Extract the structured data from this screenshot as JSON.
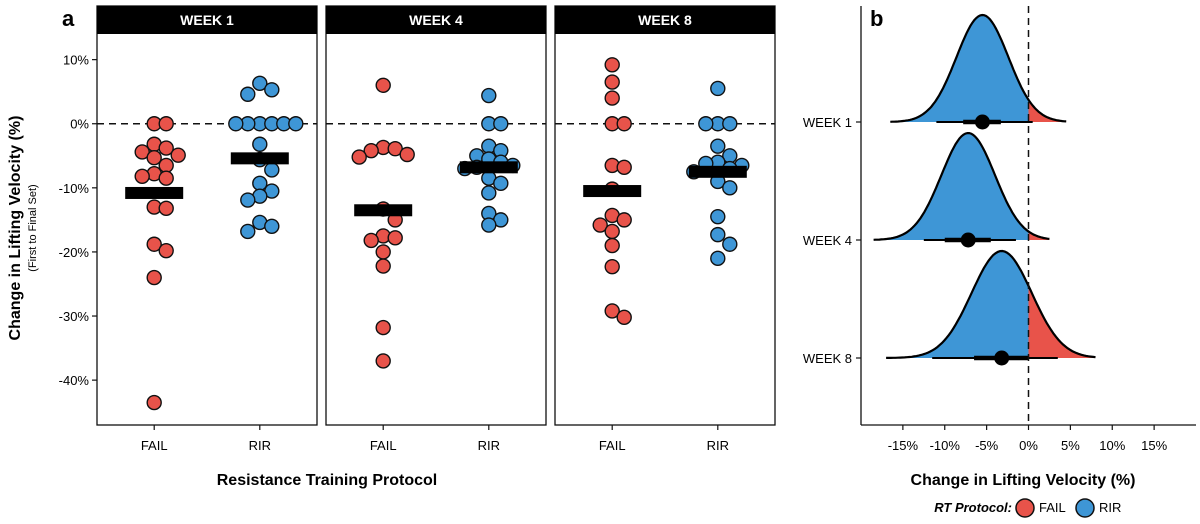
{
  "panel_a": {
    "label": "a",
    "ylabel": "Change in Lifting Velocity (%)",
    "ylabel_sub": "(First to Final Set)",
    "xlabel": "Resistance Training Protocol"
  },
  "panel_b": {
    "label": "b",
    "xlabel": "Change in Lifting Velocity (%)"
  },
  "legend": {
    "title": "RT Protocol:",
    "items": [
      {
        "label": "FAIL",
        "color": "#E8534A"
      },
      {
        "label": "RIR",
        "color": "#3E96D6"
      }
    ]
  },
  "chart_data": [
    {
      "type": "scatter",
      "facets": [
        "WEEK 1",
        "WEEK 4",
        "WEEK 8"
      ],
      "categories": [
        "FAIL",
        "RIR"
      ],
      "ylim": [
        -47,
        14
      ],
      "yticks": [
        10,
        0,
        -10,
        -20,
        -30,
        -40
      ],
      "ytick_labels": [
        "10%",
        "0%",
        "-10%",
        "-20%",
        "-30%",
        "-40%"
      ],
      "reference_line": 0,
      "grid": false,
      "series": [
        {
          "facet": "WEEK 1",
          "category": "FAIL",
          "mean": -10.8,
          "values": [
            0,
            0,
            -3.2,
            -3.8,
            -4.4,
            -4.9,
            -5.3,
            -6.5,
            -7.8,
            -8.2,
            -8.5,
            -13.0,
            -13.2,
            -18.8,
            -19.8,
            -24.0,
            -43.5
          ]
        },
        {
          "facet": "WEEK 1",
          "category": "RIR",
          "mean": -5.4,
          "values": [
            6.3,
            5.3,
            4.6,
            0,
            0,
            0,
            0,
            0,
            0,
            -3.2,
            -5.6,
            -7.2,
            -9.3,
            -10.5,
            -11.3,
            -11.9,
            -15.4,
            -16.0,
            -16.8
          ]
        },
        {
          "facet": "WEEK 4",
          "category": "FAIL",
          "mean": -13.5,
          "values": [
            6.0,
            -3.7,
            -3.9,
            -4.2,
            -4.8,
            -5.2,
            -13.3,
            -15.0,
            -17.5,
            -17.8,
            -18.2,
            -20.0,
            -22.2,
            -31.8,
            -37.0
          ]
        },
        {
          "facet": "WEEK 4",
          "category": "RIR",
          "mean": -6.8,
          "values": [
            4.4,
            0,
            0,
            -3.5,
            -4.2,
            -5.0,
            -5.5,
            -6.0,
            -6.5,
            -6.8,
            -7.0,
            -8.5,
            -9.3,
            -10.8,
            -14.0,
            -15.0,
            -15.8
          ]
        },
        {
          "facet": "WEEK 8",
          "category": "FAIL",
          "mean": -10.5,
          "values": [
            9.2,
            6.5,
            4.0,
            0,
            0,
            -6.5,
            -6.8,
            -10.2,
            -14.3,
            -15.0,
            -15.8,
            -16.8,
            -19.0,
            -22.3,
            -29.2,
            -30.2
          ]
        },
        {
          "facet": "WEEK 8",
          "category": "RIR",
          "mean": -7.5,
          "values": [
            5.5,
            0,
            0,
            0,
            -3.5,
            -5.0,
            -6.0,
            -6.2,
            -6.5,
            -7.0,
            -7.5,
            -9.0,
            -10.0,
            -14.5,
            -17.3,
            -18.8,
            -21.0
          ]
        }
      ],
      "colors": {
        "FAIL": "#E8534A",
        "RIR": "#3E96D6"
      }
    },
    {
      "type": "area",
      "subtype": "posterior-density",
      "categories": [
        "WEEK 1",
        "WEEK 4",
        "WEEK 8"
      ],
      "xlim": [
        -20,
        20
      ],
      "xticks": [
        -15,
        -10,
        -5,
        0,
        5,
        10,
        15
      ],
      "xtick_labels": [
        "-15%",
        "-10%",
        "-5%",
        "0%",
        "5%",
        "10%",
        "15%"
      ],
      "reference_line": 0,
      "series": [
        {
          "name": "WEEK 1",
          "mode": -5.5,
          "sd": 3.1,
          "range": [
            -16.5,
            4.5
          ],
          "interval_80": [
            -7.8,
            -3.3
          ],
          "interval_95": [
            -11.0,
            0.5
          ]
        },
        {
          "name": "WEEK 4",
          "mode": -7.2,
          "sd": 3.2,
          "range": [
            -18.5,
            2.5
          ],
          "interval_80": [
            -10.0,
            -4.5
          ],
          "interval_95": [
            -12.5,
            -1.5
          ]
        },
        {
          "name": "WEEK 8",
          "mode": -3.2,
          "sd": 3.6,
          "range": [
            -17.0,
            8.0
          ],
          "interval_80": [
            -6.5,
            0.0
          ],
          "interval_95": [
            -11.5,
            3.5
          ]
        }
      ],
      "colors": {
        "negative": "#3E96D6",
        "positive": "#E8534A"
      }
    }
  ]
}
